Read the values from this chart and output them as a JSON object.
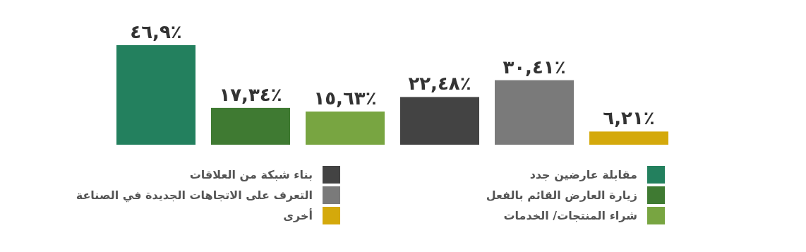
{
  "chart_data": {
    "type": "bar",
    "categories": [
      null
    ],
    "series": [
      {
        "name": "مقابلة عارضين جدد",
        "color": "#23805e",
        "values": [
          46.9
        ],
        "value_labels": [
          "٤٦,٩٪"
        ]
      },
      {
        "name": "زيارة العارض القائم بالفعل",
        "color": "#3f7a32",
        "values": [
          17.34
        ],
        "value_labels": [
          "١٧,٣٤٪"
        ]
      },
      {
        "name": "شراء المنتجات/ الخدمات",
        "color": "#78a541",
        "values": [
          15.63
        ],
        "value_labels": [
          "١٥,٦٣٪"
        ]
      },
      {
        "name": "بناء شبكة من العلاقات",
        "color": "#434343",
        "values": [
          22.48
        ],
        "value_labels": [
          "٢٢,٤٨٪"
        ]
      },
      {
        "name": "التعرف على الاتجاهات الجديدة في الصناعة",
        "color": "#7a7a7a",
        "values": [
          30.41
        ],
        "value_labels": [
          "٣٠,٤١٪"
        ]
      },
      {
        "name": "أخرى",
        "color": "#d4a90b",
        "values": [
          6.21
        ],
        "value_labels": [
          "٦,٢١٪"
        ]
      }
    ],
    "legend": "bottom"
  }
}
